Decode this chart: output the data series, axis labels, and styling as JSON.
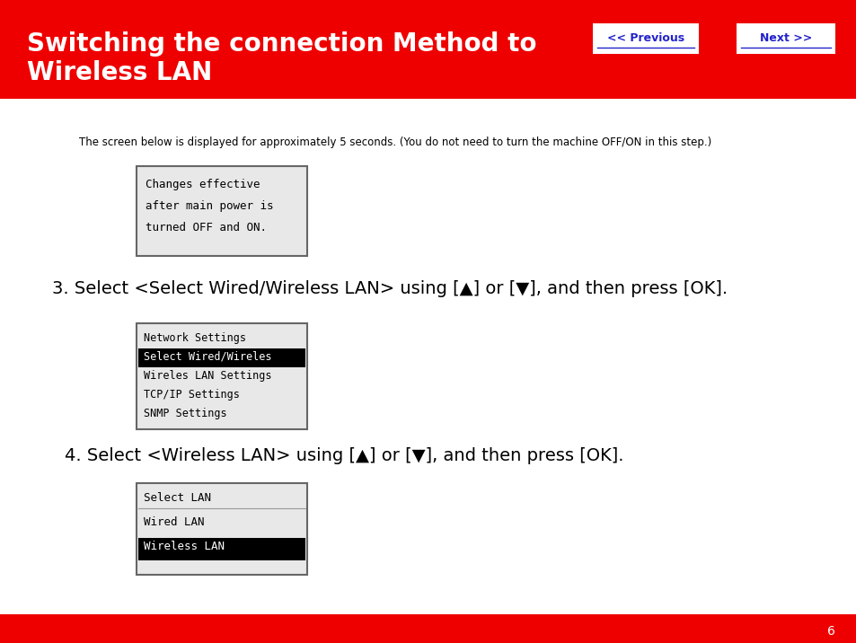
{
  "title_line1": "Switching the connection Method to",
  "title_line2": "Wireless LAN",
  "header_bg": "#EE0000",
  "header_text_color": "#FFFFFF",
  "footer_bg": "#EE0000",
  "page_number": "6",
  "btn_prev_text": "<< Previous",
  "btn_next_text": "Next >>",
  "btn_text_color": "#2222CC",
  "btn_bg": "#FFFFFF",
  "body_bg": "#FFFFFF",
  "body_text_color": "#000000",
  "intro_text": "The screen below is displayed for approximately 5 seconds. (You do not need to turn the machine OFF/ON in this step.)",
  "screen1_lines": [
    "Changes effective",
    "after main power is",
    "turned OFF and ON."
  ],
  "step3_text": "3. Select <Select Wired/Wireless LAN> using [▲] or [▼], and then press [OK].",
  "screen2_lines": [
    "Network Settings",
    "Select Wired/Wireles",
    "Wireles LAN Settings",
    "TCP/IP Settings",
    "SNMP Settings"
  ],
  "screen2_highlight": 1,
  "step4_text": "4. Select <Wireless LAN> using [▲] or [▼], and then press [OK].",
  "screen3_lines": [
    "Select LAN",
    "Wired LAN",
    "Wireless LAN"
  ],
  "screen3_highlight": 2,
  "screen_bg": "#E8E8E8",
  "screen_border": "#666666",
  "highlight_bg": "#000000",
  "highlight_fg": "#FFFFFF"
}
